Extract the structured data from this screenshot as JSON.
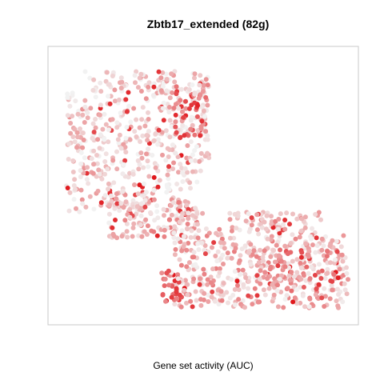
{
  "chart_data": {
    "type": "scatter",
    "title": "Zbtb17_extended (82g)",
    "xlabel": "Gene set activity (AUC)",
    "ylabel": "",
    "axes_visible": false,
    "grid": false,
    "legend": "none",
    "color_scale": {
      "low": "#f2f2f2",
      "high": "#e0151a",
      "metric": "AUC (relative)"
    },
    "xlim": [
      0,
      100
    ],
    "ylim": [
      0,
      100
    ],
    "regions": [
      {
        "label": "upper-left lobe",
        "x_range": [
          4,
          52
        ],
        "y_range": [
          40,
          93
        ],
        "count": 560,
        "mean_level": 0.18,
        "seed": 11
      },
      {
        "label": "upper-right edge hotspot",
        "x_range": [
          40,
          53
        ],
        "y_range": [
          68,
          88
        ],
        "count": 60,
        "mean_level": 0.62,
        "seed": 23
      },
      {
        "label": "connecting neck",
        "x_range": [
          18,
          48
        ],
        "y_range": [
          30,
          45
        ],
        "count": 130,
        "mean_level": 0.28,
        "seed": 37
      },
      {
        "label": "lower-right lobe",
        "x_range": [
          40,
          99
        ],
        "y_range": [
          4,
          40
        ],
        "count": 560,
        "mean_level": 0.28,
        "seed": 41
      },
      {
        "label": "lower-left corner hotspot",
        "x_range": [
          32,
          43
        ],
        "y_range": [
          6,
          18
        ],
        "count": 35,
        "mean_level": 0.68,
        "seed": 53
      },
      {
        "label": "lower-right hotspot",
        "x_range": [
          75,
          96
        ],
        "y_range": [
          10,
          26
        ],
        "count": 45,
        "mean_level": 0.55,
        "seed": 67
      }
    ]
  }
}
